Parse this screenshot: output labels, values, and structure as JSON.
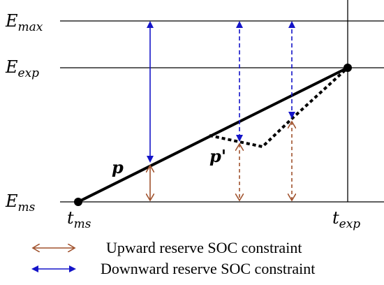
{
  "labels": {
    "e_max": {
      "main": "E",
      "sub": "max"
    },
    "e_exp": {
      "main": "E",
      "sub": "exp"
    },
    "e_ms": {
      "main": "E",
      "sub": "ms"
    },
    "t_ms": {
      "main": "t",
      "sub": "ms"
    },
    "t_exp": {
      "main": "t",
      "sub": "exp"
    },
    "p": "p",
    "p_prime": "p'"
  },
  "legend": {
    "upward": "Upward reserve SOC constraint",
    "downward": "Downward reserve SOC constraint"
  },
  "colors": {
    "upward_arrow": "#a0522d",
    "downward_arrow": "#1414c8",
    "lines": "#000000"
  }
}
